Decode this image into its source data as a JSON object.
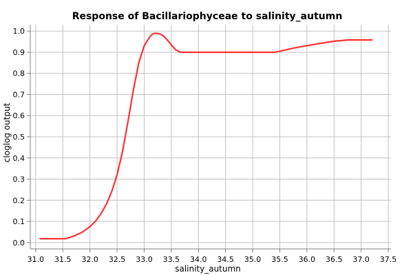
{
  "chart_data": {
    "type": "line",
    "title": "Response of Bacillariophyceae to salinity_autumn",
    "xlabel": "salinity_autumn",
    "ylabel": "cloglog output",
    "xlim": [
      30.9,
      37.55
    ],
    "ylim": [
      -0.03,
      1.03
    ],
    "x_ticks": [
      "31.0",
      "31.5",
      "32.0",
      "32.5",
      "33.0",
      "33.5",
      "34.0",
      "34.5",
      "35.0",
      "35.5",
      "36.0",
      "36.5",
      "37.0",
      "37.5"
    ],
    "y_ticks": [
      "0.0",
      "0.1",
      "0.2",
      "0.3",
      "0.4",
      "0.5",
      "0.6",
      "0.7",
      "0.8",
      "0.9",
      "1.0"
    ],
    "grid": true,
    "series": [
      {
        "color": "#ff3030",
        "x": [
          31.08,
          31.3,
          31.55,
          31.7,
          31.85,
          32.0,
          32.1,
          32.2,
          32.3,
          32.4,
          32.5,
          32.6,
          32.7,
          32.8,
          32.9,
          33.0,
          33.1,
          33.15,
          33.2,
          33.28,
          33.35,
          33.42,
          33.5,
          33.58,
          33.67,
          34.0,
          34.5,
          35.0,
          35.42,
          35.8,
          36.2,
          36.5,
          36.75,
          37.0,
          37.2
        ],
        "y": [
          0.018,
          0.018,
          0.018,
          0.03,
          0.048,
          0.075,
          0.1,
          0.135,
          0.18,
          0.24,
          0.32,
          0.43,
          0.57,
          0.72,
          0.85,
          0.93,
          0.972,
          0.985,
          0.99,
          0.988,
          0.978,
          0.96,
          0.935,
          0.912,
          0.9,
          0.9,
          0.9,
          0.9,
          0.9,
          0.922,
          0.94,
          0.952,
          0.958,
          0.958,
          0.958
        ]
      }
    ]
  }
}
